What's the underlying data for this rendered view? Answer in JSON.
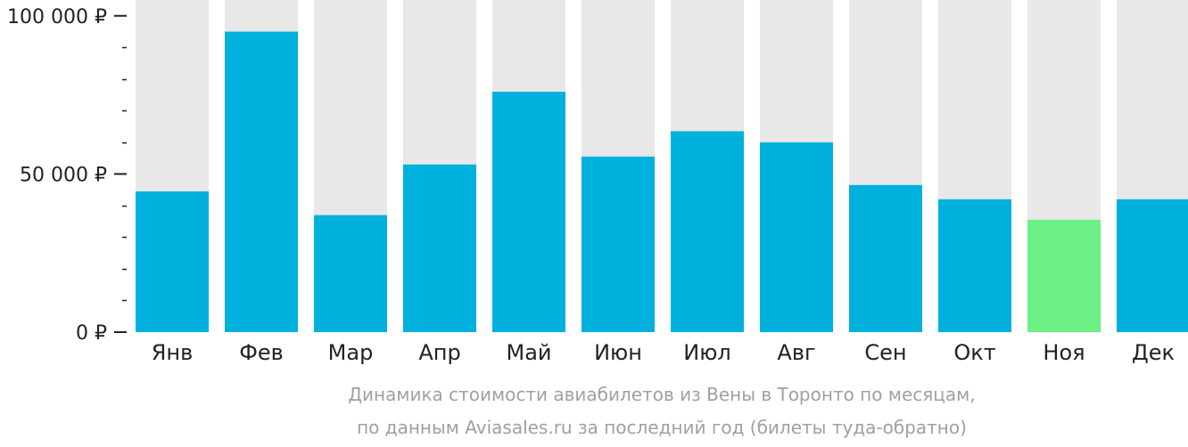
{
  "chart_data": {
    "type": "bar",
    "categories": [
      "Янв",
      "Фев",
      "Мар",
      "Апр",
      "Май",
      "Июн",
      "Июл",
      "Авг",
      "Сен",
      "Окт",
      "Ноя",
      "Дек"
    ],
    "values": [
      44500,
      95000,
      37000,
      53000,
      76000,
      55500,
      63500,
      60000,
      46500,
      42000,
      35500,
      42000
    ],
    "ylim": [
      0,
      105000
    ],
    "yticks": [
      {
        "value": 0,
        "label": "0 ₽"
      },
      {
        "value": 50000,
        "label": "50 000 ₽"
      },
      {
        "value": 100000,
        "label": "100 000 ₽"
      }
    ],
    "minor_tick_step": 10000,
    "highlight_index": 10,
    "caption_lines": [
      "Динамика стоимости авиабилетов из Вены в Торонто по месяцам,",
      "по данным Aviasales.ru за последний год (билеты туда-обратно)"
    ],
    "colors": {
      "bar": "#00b0dd",
      "highlight": "#6cef85",
      "background_bar": "#e8e8e8",
      "axis": "#222222",
      "caption": "#a0a0a0"
    }
  }
}
